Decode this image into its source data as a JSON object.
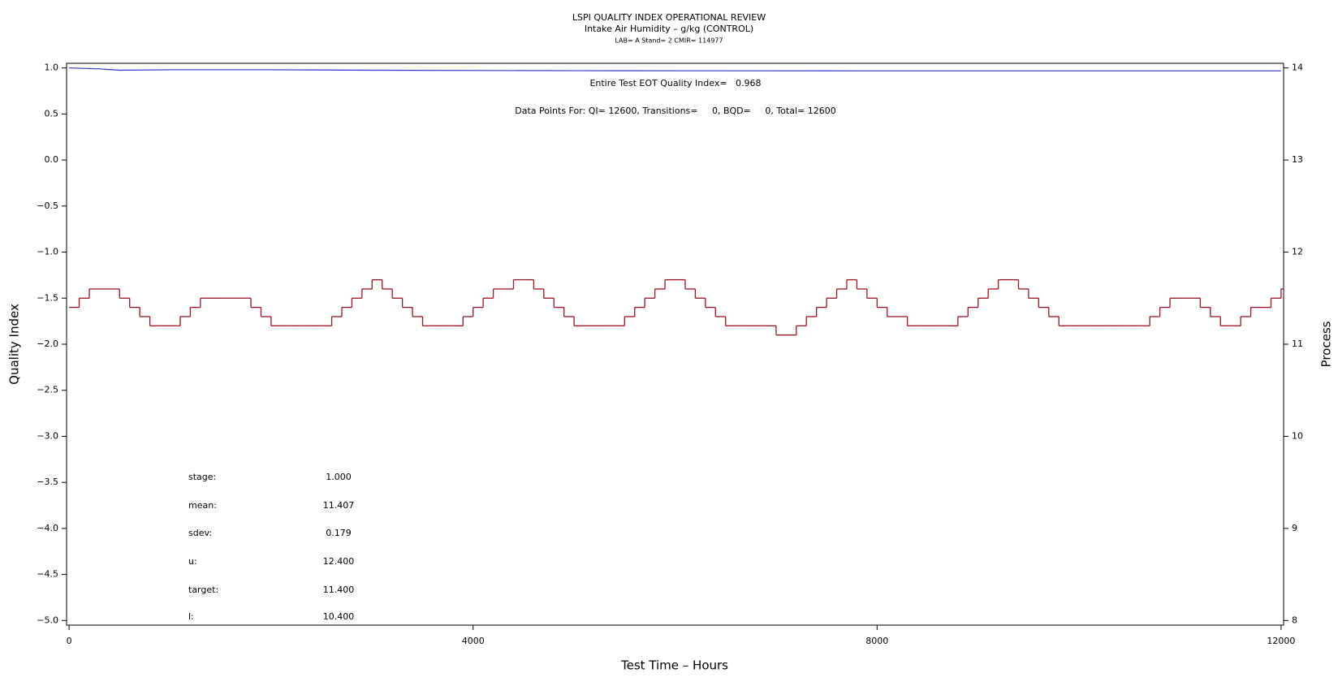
{
  "chart_data": {
    "type": "line",
    "title": "LSPI QUALITY INDEX OPERATIONAL REVIEW",
    "subtitle": "Intake Air Humidity – g/kg (CONTROL)",
    "caption": "LAB= A Stand= 2 CMIR= 114977",
    "annotations": [
      "Entire Test EOT Quality Index=   0.968",
      "Data Points For: QI= 12600, Transitions=     0, BQD=     0, Total= 12600"
    ],
    "x_label": "Test Time – Hours",
    "y_label": "Quality Index",
    "y2_label": "Process",
    "xlim": [
      -25,
      12025
    ],
    "xticks": [
      0,
      4000,
      8000,
      12000
    ],
    "ylim": [
      -5.05,
      1.05
    ],
    "yticks": [
      {
        "value": 1,
        "label": "1.0"
      },
      0.5,
      {
        "value": 0,
        "label": "0.0"
      },
      {
        "value": -0.5,
        "label": "−0.5"
      },
      {
        "value": -1,
        "label": "−1.0"
      },
      {
        "value": -1.5,
        "label": "−1.5"
      },
      {
        "value": -2,
        "label": "−2.0"
      },
      {
        "value": -2.5,
        "label": "−2.5"
      },
      {
        "value": -3,
        "label": "−3.0"
      },
      {
        "value": -3.5,
        "label": "−3.5"
      },
      {
        "value": -4,
        "label": "−4.0"
      },
      {
        "value": -4.5,
        "label": "−4.5"
      },
      {
        "value": -5,
        "label": "−5.0"
      }
    ],
    "y2lim": [
      7.95,
      14.05
    ],
    "y2ticks": [
      8,
      9,
      10,
      11,
      12,
      13,
      14
    ],
    "series": [
      {
        "color": "#3333cc",
        "x": [
          0,
          300,
          500,
          1000,
          2000,
          3000,
          5000,
          8000,
          12000
        ],
        "values": [
          1.0,
          0.99,
          0.975,
          0.98,
          0.98,
          0.975,
          0.97,
          0.968,
          0.968
        ]
      },
      {
        "color": "#a01020",
        "axis": "y2",
        "step": true,
        "x": [
          0,
          100,
          200,
          300,
          400,
          500,
          600,
          700,
          800,
          900,
          1000,
          1100,
          1200,
          1300,
          1400,
          1500,
          1600,
          1700,
          1800,
          1900,
          2000,
          2100,
          2200,
          2300,
          2400,
          2500,
          2600,
          2700,
          2800,
          2900,
          3000,
          3100,
          3200,
          3300,
          3400,
          3500,
          3600,
          3700,
          3800,
          3900,
          4000,
          4100,
          4200,
          4300,
          4400,
          4500,
          4600,
          4700,
          4800,
          4900,
          5000,
          5100,
          5200,
          5300,
          5400,
          5500,
          5600,
          5700,
          5800,
          5900,
          6000,
          6100,
          6200,
          6300,
          6400,
          6500,
          6600,
          6700,
          6800,
          6900,
          7000,
          7100,
          7200,
          7300,
          7400,
          7500,
          7600,
          7700,
          7800,
          7900,
          8000,
          8100,
          8200,
          8300,
          8400,
          8500,
          8600,
          8700,
          8800,
          8900,
          9000,
          9100,
          9200,
          9300,
          9400,
          9500,
          9600,
          9700,
          9800,
          9900,
          10000,
          10100,
          10200,
          10300,
          10400,
          10500,
          10600,
          10700,
          10800,
          10900,
          11000,
          11100,
          11200,
          11300,
          11400,
          11500,
          11600,
          11700,
          11800,
          11900,
          12000
        ],
        "values": [
          11.4,
          11.5,
          11.6,
          11.6,
          11.6,
          11.5,
          11.4,
          11.3,
          11.2,
          11.2,
          11.2,
          11.3,
          11.4,
          11.5,
          11.5,
          11.5,
          11.5,
          11.5,
          11.4,
          11.3,
          11.2,
          11.2,
          11.2,
          11.2,
          11.2,
          11.2,
          11.3,
          11.4,
          11.5,
          11.6,
          11.7,
          11.6,
          11.5,
          11.4,
          11.3,
          11.2,
          11.2,
          11.2,
          11.2,
          11.3,
          11.4,
          11.5,
          11.6,
          11.6,
          11.7,
          11.7,
          11.6,
          11.5,
          11.4,
          11.3,
          11.2,
          11.2,
          11.2,
          11.2,
          11.2,
          11.3,
          11.4,
          11.5,
          11.6,
          11.7,
          11.7,
          11.6,
          11.5,
          11.4,
          11.3,
          11.2,
          11.2,
          11.2,
          11.2,
          11.2,
          11.1,
          11.1,
          11.2,
          11.3,
          11.4,
          11.5,
          11.6,
          11.7,
          11.6,
          11.5,
          11.4,
          11.3,
          11.3,
          11.2,
          11.2,
          11.2,
          11.2,
          11.2,
          11.3,
          11.4,
          11.5,
          11.6,
          11.7,
          11.7,
          11.6,
          11.5,
          11.4,
          11.3,
          11.2,
          11.2,
          11.2,
          11.2,
          11.2,
          11.2,
          11.2,
          11.2,
          11.2,
          11.3,
          11.4,
          11.5,
          11.5,
          11.5,
          11.4,
          11.3,
          11.2,
          11.2,
          11.3,
          11.4,
          11.4,
          11.5,
          11.6
        ]
      }
    ],
    "stats": [
      {
        "label": "stage:",
        "value": "1.000"
      },
      {
        "label": "mean:",
        "value": "11.407"
      },
      {
        "label": "sdev:",
        "value": "0.179"
      },
      {
        "label": "u:",
        "value": "12.400"
      },
      {
        "label": "target:",
        "value": "11.400"
      },
      {
        "label": "l:",
        "value": "10.400"
      }
    ]
  }
}
